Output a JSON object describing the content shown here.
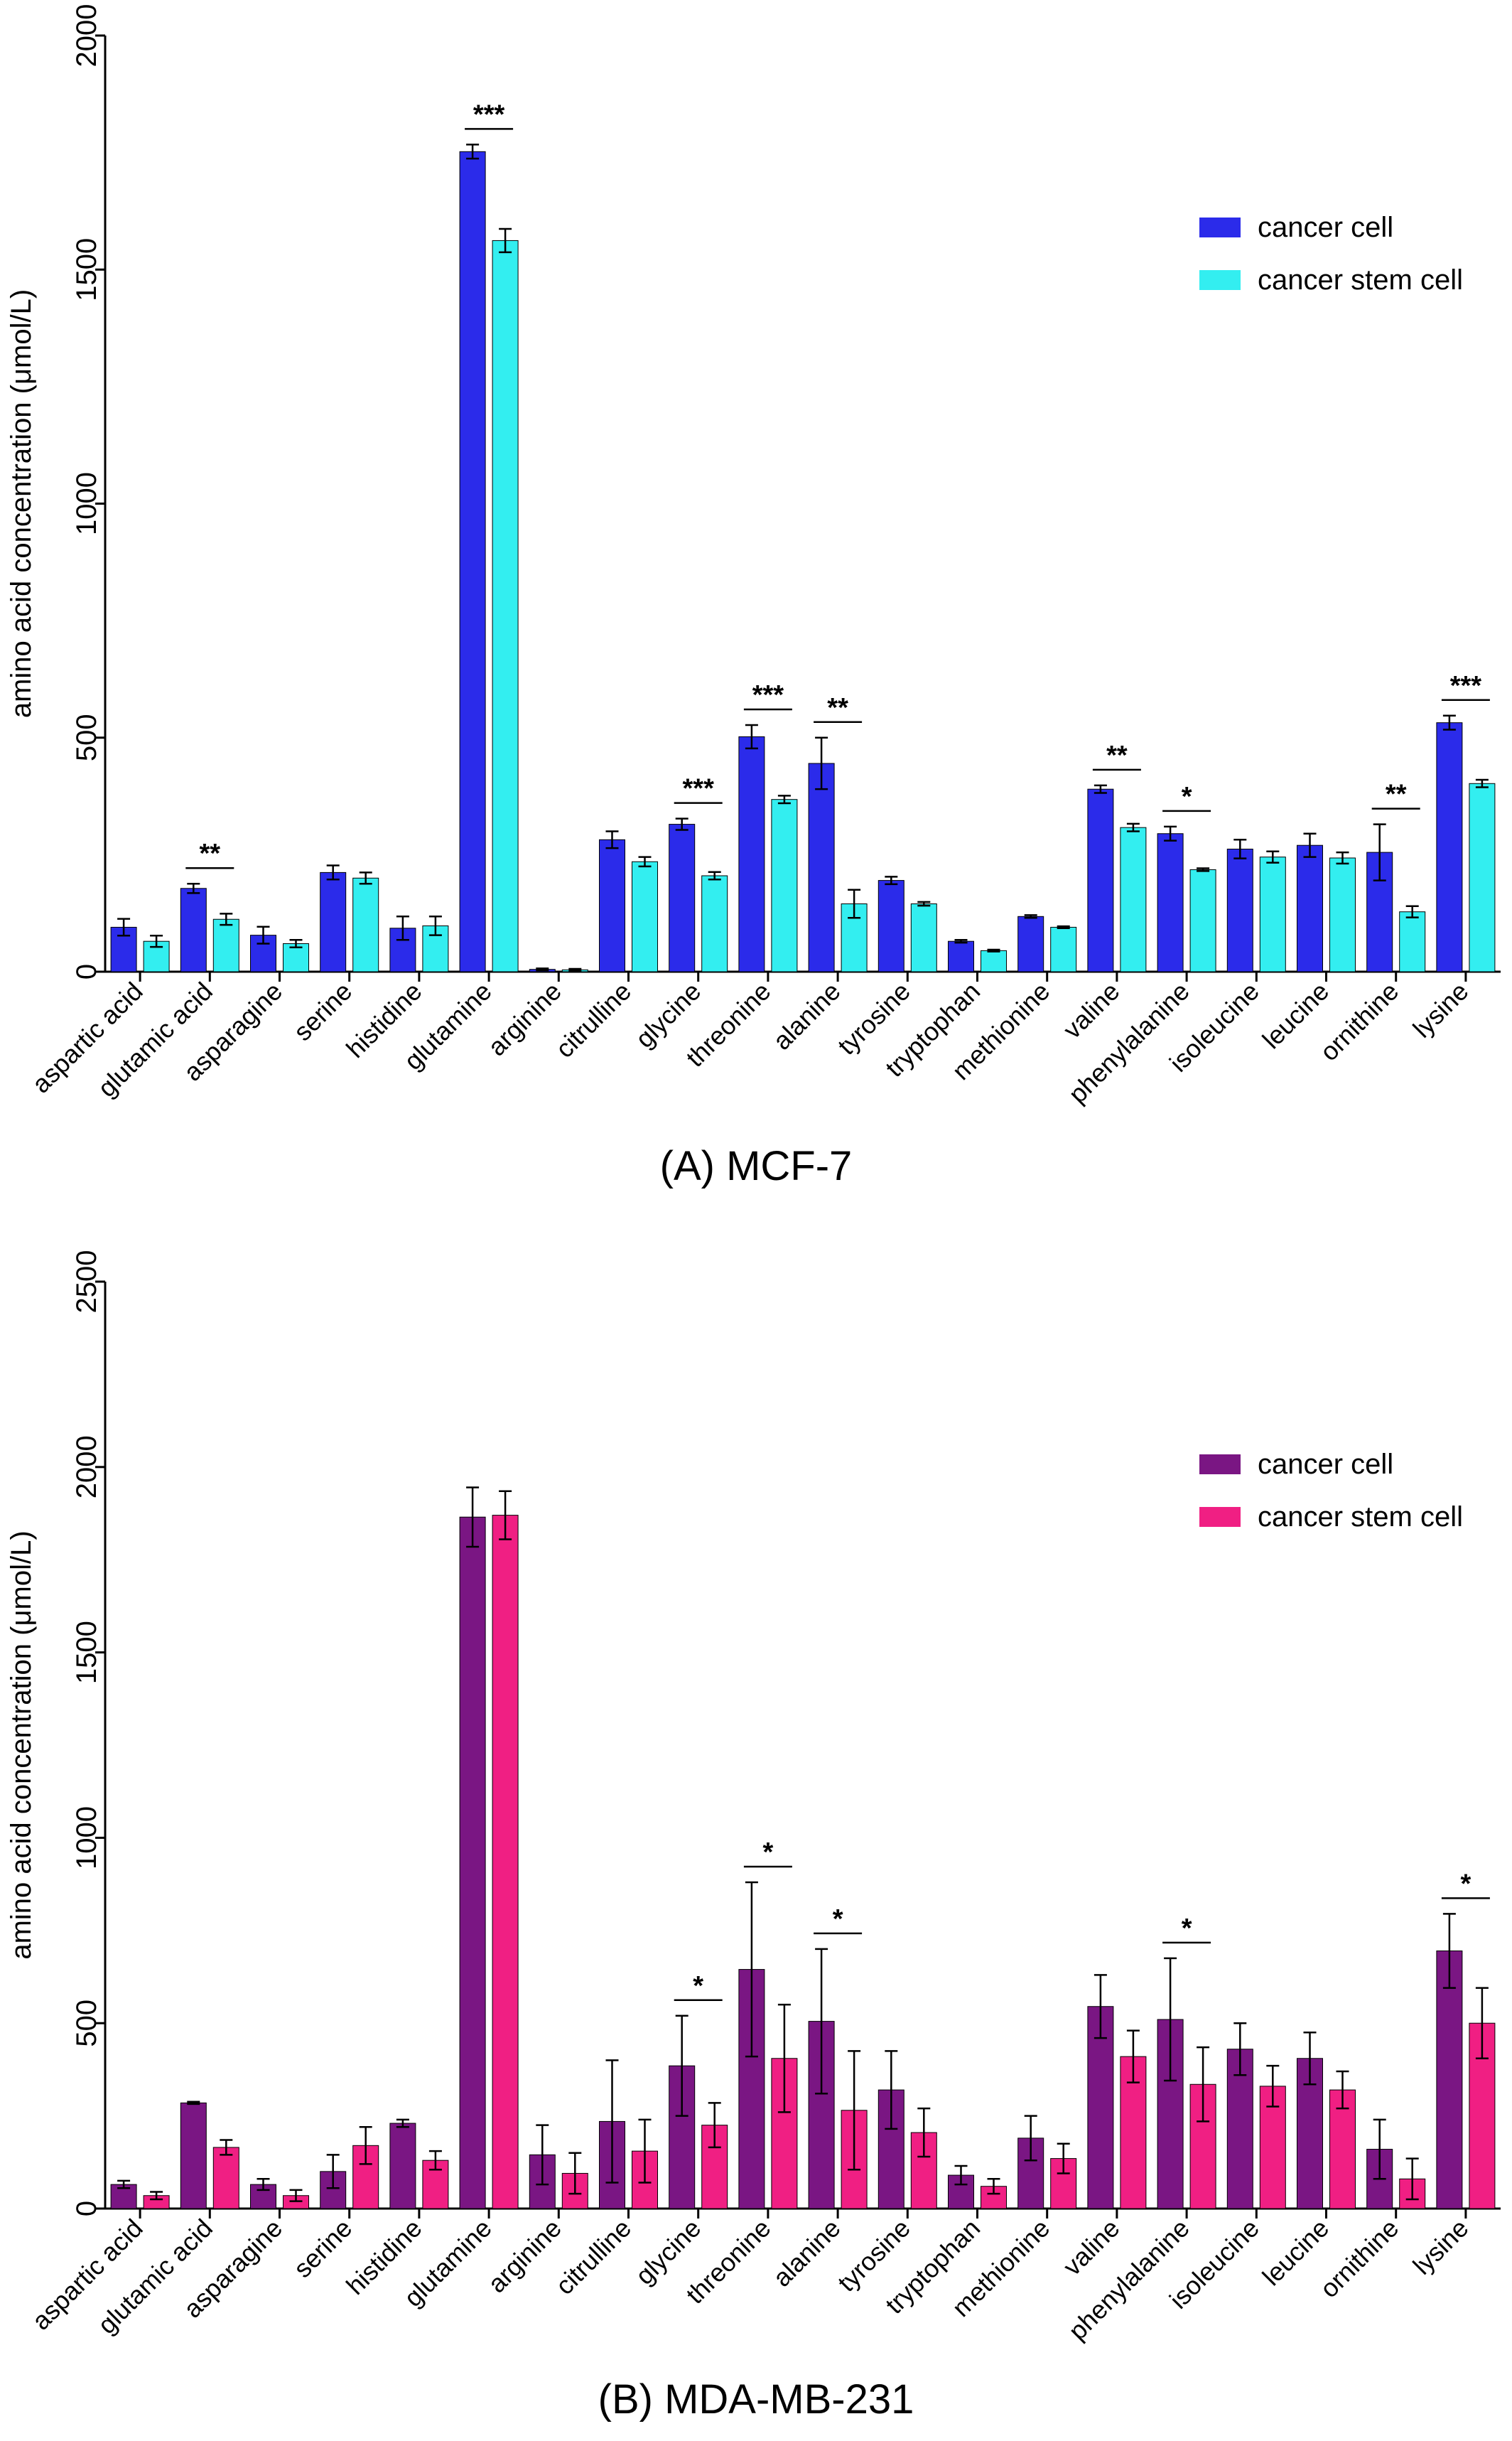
{
  "chart_data": [
    {
      "type": "bar",
      "caption": "(A) MCF-7",
      "ylabel": "amino acid concentration (μmol/L)",
      "ylim": [
        0,
        2000
      ],
      "yticks": [
        0,
        500,
        1000,
        1500,
        2000
      ],
      "grid": false,
      "legend_position": "top-right",
      "categories": [
        "aspartic acid",
        "glutamic acid",
        "asparagine",
        "serine",
        "histidine",
        "glutamine",
        "arginine",
        "citrulline",
        "glycine",
        "threonine",
        "alanine",
        "tyrosine",
        "tryptophan",
        "methionine",
        "valine",
        "phenylalanine",
        "isoleucine",
        "leucine",
        "ornithine",
        "lysine"
      ],
      "series": [
        {
          "name": "cancer cell",
          "color": "#2b2bea",
          "values": [
            95,
            178,
            78,
            212,
            93,
            1752,
            5,
            282,
            315,
            502,
            445,
            195,
            65,
            118,
            390,
            295,
            262,
            270,
            255,
            532
          ],
          "errors": [
            18,
            10,
            18,
            15,
            25,
            15,
            2,
            18,
            12,
            25,
            55,
            8,
            3,
            3,
            8,
            15,
            20,
            25,
            60,
            15
          ]
        },
        {
          "name": "cancer stem cell",
          "color": "#33eef0",
          "values": [
            65,
            112,
            60,
            200,
            98,
            1562,
            4,
            235,
            205,
            368,
            145,
            145,
            45,
            95,
            308,
            218,
            245,
            243,
            128,
            402
          ],
          "errors": [
            12,
            12,
            8,
            12,
            20,
            25,
            2,
            10,
            8,
            8,
            30,
            4,
            2,
            2,
            8,
            3,
            12,
            12,
            12,
            8
          ]
        }
      ],
      "significance": [
        {
          "category": "glutamic acid",
          "label": "**"
        },
        {
          "category": "glutamine",
          "label": "***"
        },
        {
          "category": "glycine",
          "label": "***"
        },
        {
          "category": "threonine",
          "label": "***"
        },
        {
          "category": "alanine",
          "label": "**"
        },
        {
          "category": "valine",
          "label": "**"
        },
        {
          "category": "phenylalanine",
          "label": "*"
        },
        {
          "category": "ornithine",
          "label": "**"
        },
        {
          "category": "lysine",
          "label": "***"
        }
      ]
    },
    {
      "type": "bar",
      "caption": "(B) MDA-MB-231",
      "ylabel": "amino acid concentration (μmol/L)",
      "ylim": [
        0,
        2500
      ],
      "yticks": [
        0,
        500,
        1000,
        1500,
        2000,
        2500
      ],
      "grid": false,
      "legend_position": "top-right",
      "categories": [
        "aspartic acid",
        "glutamic acid",
        "asparagine",
        "serine",
        "histidine",
        "glutamine",
        "arginine",
        "citrulline",
        "glycine",
        "threonine",
        "alanine",
        "tyrosine",
        "tryptophan",
        "methionine",
        "valine",
        "phenylalanine",
        "isoleucine",
        "leucine",
        "ornithine",
        "lysine"
      ],
      "series": [
        {
          "name": "cancer cell",
          "color": "#7a1683",
          "values": [
            65,
            285,
            65,
            100,
            230,
            1865,
            145,
            235,
            385,
            645,
            505,
            320,
            90,
            190,
            545,
            510,
            430,
            405,
            160,
            695
          ],
          "errors": [
            10,
            3,
            15,
            45,
            10,
            80,
            80,
            165,
            135,
            235,
            195,
            105,
            25,
            60,
            85,
            165,
            70,
            70,
            80,
            100
          ]
        },
        {
          "name": "cancer stem cell",
          "color": "#f01f83",
          "values": [
            35,
            165,
            35,
            170,
            130,
            1870,
            95,
            155,
            225,
            405,
            265,
            205,
            60,
            135,
            410,
            335,
            330,
            320,
            80,
            500
          ],
          "errors": [
            10,
            20,
            15,
            50,
            25,
            65,
            55,
            85,
            60,
            145,
            160,
            65,
            20,
            40,
            70,
            100,
            55,
            50,
            55,
            95
          ]
        }
      ],
      "significance": [
        {
          "category": "glycine",
          "label": "*"
        },
        {
          "category": "threonine",
          "label": "*"
        },
        {
          "category": "alanine",
          "label": "*"
        },
        {
          "category": "phenylalanine",
          "label": "*"
        },
        {
          "category": "lysine",
          "label": "*"
        }
      ]
    }
  ]
}
